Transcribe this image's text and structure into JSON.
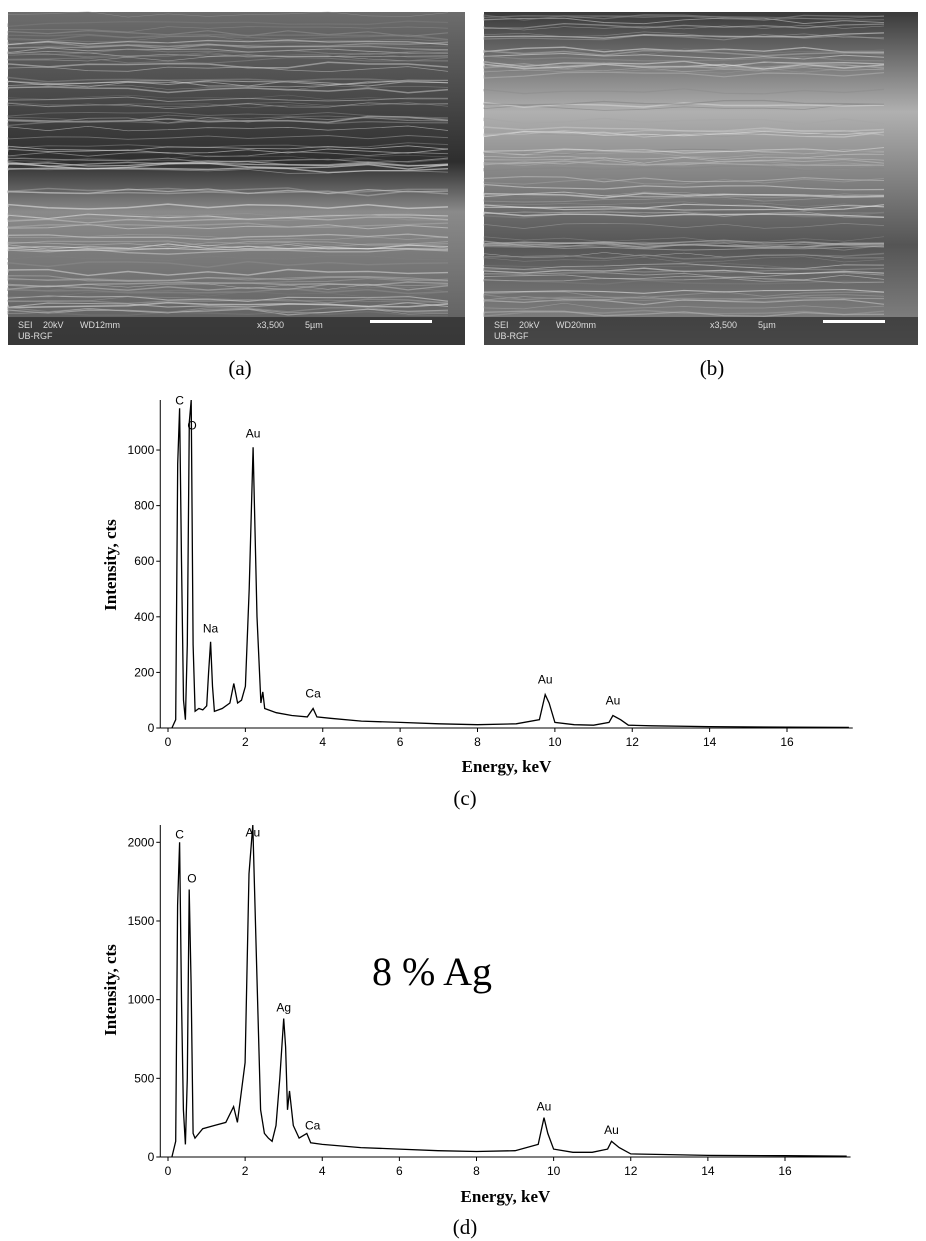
{
  "images": [
    {
      "caption": "(a)",
      "info": [
        "SEI",
        "20kV",
        "WD12mm",
        "x3,500",
        "5µm"
      ],
      "lab": "UB-RGF"
    },
    {
      "caption": "(b)",
      "info": [
        "SEI",
        "20kV",
        "WD20mm",
        "x3,500",
        "5µm"
      ],
      "lab": "UB-RGF"
    }
  ],
  "chart_data": [
    {
      "type": "line",
      "caption": "(c)",
      "xlabel": "Energy, keV",
      "ylabel": "Intensity, cts",
      "color": "#000000",
      "xlim": [
        -0.2,
        17.7
      ],
      "ylim": [
        0,
        1180
      ],
      "xticks": [
        0,
        2,
        4,
        6,
        8,
        10,
        12,
        14,
        16
      ],
      "yticks": [
        0,
        200,
        400,
        600,
        800,
        1000
      ],
      "x": [
        0.1,
        0.2,
        0.25,
        0.3,
        0.35,
        0.4,
        0.45,
        0.5,
        0.55,
        0.6,
        0.65,
        0.7,
        0.8,
        0.9,
        1.0,
        1.05,
        1.1,
        1.15,
        1.2,
        1.4,
        1.6,
        1.7,
        1.8,
        1.9,
        2.0,
        2.1,
        2.2,
        2.3,
        2.4,
        2.45,
        2.5,
        2.8,
        3.2,
        3.6,
        3.75,
        3.85,
        4.2,
        5,
        6,
        7,
        8,
        9,
        9.6,
        9.75,
        9.85,
        10,
        10.5,
        11,
        11.4,
        11.5,
        11.7,
        11.9,
        12.5,
        14,
        16,
        17.6
      ],
      "values": [
        0,
        30,
        950,
        1150,
        600,
        100,
        30,
        300,
        1100,
        1180,
        300,
        60,
        70,
        65,
        80,
        200,
        310,
        150,
        60,
        70,
        90,
        160,
        90,
        100,
        150,
        500,
        1010,
        400,
        90,
        130,
        70,
        55,
        45,
        40,
        70,
        40,
        35,
        25,
        20,
        15,
        12,
        15,
        30,
        120,
        90,
        20,
        12,
        10,
        20,
        45,
        30,
        10,
        8,
        5,
        3,
        2
      ],
      "annotations": [
        {
          "text": "C",
          "x": 0.3,
          "y": 1150
        },
        {
          "text": "O",
          "x": 0.62,
          "y": 1060
        },
        {
          "text": "Au",
          "x": 2.2,
          "y": 1030
        },
        {
          "text": "Na",
          "x": 1.1,
          "y": 330
        },
        {
          "text": "Ca",
          "x": 3.75,
          "y": 95
        },
        {
          "text": "Au",
          "x": 9.75,
          "y": 145
        },
        {
          "text": "Au",
          "x": 11.5,
          "y": 70
        }
      ]
    },
    {
      "type": "line",
      "caption": "(d)",
      "xlabel": "Energy, keV",
      "ylabel": "Intensity, cts",
      "label": "8 % Ag",
      "color": "#000000",
      "xlim": [
        -0.2,
        17.7
      ],
      "ylim": [
        0,
        2110
      ],
      "xticks": [
        0,
        2,
        4,
        6,
        8,
        10,
        12,
        14,
        16
      ],
      "yticks": [
        0,
        500,
        1000,
        1500,
        2000
      ],
      "x": [
        0.1,
        0.2,
        0.25,
        0.3,
        0.35,
        0.4,
        0.45,
        0.5,
        0.55,
        0.6,
        0.65,
        0.7,
        0.9,
        1.2,
        1.5,
        1.7,
        1.8,
        2.0,
        2.1,
        2.2,
        2.3,
        2.4,
        2.5,
        2.6,
        2.7,
        2.8,
        2.9,
        3.0,
        3.05,
        3.1,
        3.15,
        3.25,
        3.4,
        3.6,
        3.7,
        4,
        5,
        6,
        7,
        8,
        9,
        9.6,
        9.75,
        9.85,
        10,
        10.5,
        11,
        11.4,
        11.5,
        11.7,
        12,
        13,
        14,
        16,
        17.6
      ],
      "values": [
        0,
        100,
        1600,
        2000,
        1000,
        300,
        80,
        500,
        1700,
        1100,
        150,
        120,
        180,
        200,
        220,
        320,
        220,
        600,
        1800,
        2110,
        1200,
        300,
        150,
        120,
        100,
        200,
        500,
        880,
        700,
        300,
        420,
        200,
        120,
        150,
        90,
        80,
        60,
        50,
        40,
        35,
        40,
        80,
        250,
        150,
        50,
        30,
        30,
        50,
        100,
        60,
        20,
        15,
        10,
        8,
        5
      ],
      "annotations": [
        {
          "text": "C",
          "x": 0.3,
          "y": 2000
        },
        {
          "text": "O",
          "x": 0.62,
          "y": 1720
        },
        {
          "text": "Au",
          "x": 2.2,
          "y": 2010
        },
        {
          "text": "Ag",
          "x": 3.0,
          "y": 900
        },
        {
          "text": "Ca",
          "x": 3.75,
          "y": 150
        },
        {
          "text": "Au",
          "x": 9.75,
          "y": 270
        },
        {
          "text": "Au",
          "x": 11.5,
          "y": 120
        }
      ]
    }
  ]
}
